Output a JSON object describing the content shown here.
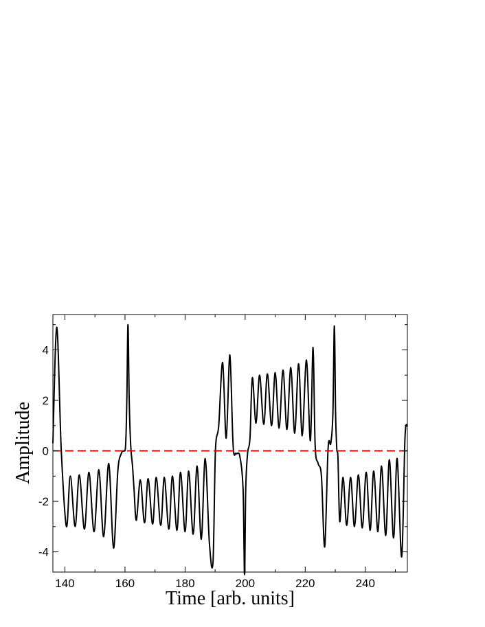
{
  "chart_data": {
    "type": "line",
    "title": "",
    "xlabel": "Time [arb. units]",
    "ylabel": "Amplitude",
    "xlim": [
      136,
      254
    ],
    "ylim": [
      -4.8,
      5.4
    ],
    "grid": false,
    "legend": "none",
    "x_ticks": [
      140,
      160,
      180,
      200,
      220,
      240
    ],
    "x_tick_labels": [
      "140",
      "160",
      "180",
      "200",
      "220",
      "240"
    ],
    "x_minor_ticks": [
      150,
      170,
      190,
      210,
      230,
      250
    ],
    "y_ticks": [
      -4,
      -2,
      0,
      2,
      4
    ],
    "y_tick_labels": [
      "-4",
      "-2",
      "0",
      "2",
      "4"
    ],
    "y_minor_ticks": [
      -3,
      -1,
      1,
      3,
      5
    ],
    "series": [
      {
        "color": "#000000",
        "style": "solid",
        "x": [
          136,
          137.3,
          138.8,
          140.5,
          141.8,
          143.4,
          144.8,
          146.5,
          148,
          149.7,
          151.3,
          152.9,
          154.6,
          156.2,
          157.6,
          158.8,
          159.6,
          160.2,
          160.6,
          161,
          161.4,
          161.9,
          162.5,
          163,
          163.8,
          165.1,
          166.5,
          167.7,
          169.2,
          170.4,
          171.9,
          173.1,
          174.6,
          175.8,
          177.3,
          178.5,
          180,
          181.2,
          182.7,
          184,
          185.4,
          186.7,
          188.1,
          189.3,
          190.1,
          191.2,
          192.5,
          193.7,
          194.9,
          196,
          197,
          198.2,
          199.3,
          199.8,
          200.2,
          200.8,
          201.6,
          202.4,
          203.6,
          204.8,
          206.2,
          207.4,
          208.8,
          210,
          211.3,
          212.6,
          213.9,
          215.2,
          216.5,
          217.8,
          219,
          220.4,
          221.7,
          222.6,
          223.3,
          224.3,
          225.4,
          226.5,
          227.6,
          228.5,
          229.2,
          229.7,
          230.1,
          230.5,
          230.9,
          231.5,
          232.6,
          233.8,
          235.1,
          236.4,
          237.7,
          239,
          240.3,
          241.6,
          242.8,
          244.2,
          245.4,
          246.8,
          248,
          249.4,
          250.6,
          252.1,
          253.2,
          254
        ],
        "y": [
          0.3,
          4.9,
          0,
          -3,
          -1,
          -3,
          -0.95,
          -3.1,
          -0.85,
          -3.2,
          -0.75,
          -3.4,
          -0.5,
          -3.85,
          -0.8,
          -0.1,
          0,
          0.2,
          2,
          5,
          2,
          0.2,
          -0.6,
          -1.5,
          -2.75,
          -1.15,
          -2.85,
          -1.1,
          -2.9,
          -1.05,
          -2.95,
          -1.05,
          -3.1,
          -1,
          -3.15,
          -0.85,
          -3.2,
          -0.8,
          -3.3,
          -0.6,
          -3.5,
          -0.3,
          -3.65,
          -4.4,
          0,
          1,
          3.5,
          0.5,
          3.8,
          0.2,
          -0.1,
          -0.2,
          -1.5,
          -4.9,
          -1.5,
          -0.1,
          0.5,
          2.9,
          1.1,
          3,
          1.05,
          3.05,
          1.0,
          3.1,
          0.9,
          3.2,
          0.85,
          3.3,
          0.7,
          3.45,
          0.6,
          3.6,
          0.4,
          4.1,
          0.2,
          -0.5,
          -1,
          -3.8,
          0.1,
          0.3,
          1.5,
          4.95,
          1.5,
          0.1,
          -0.3,
          -2.8,
          -1.05,
          -2.95,
          -1.05,
          -3,
          -0.95,
          -3.05,
          -0.85,
          -3.15,
          -0.8,
          -3.2,
          -0.6,
          -3.35,
          -0.35,
          -3.45,
          -0.3,
          -4.2,
          0.5,
          1.0
        ]
      },
      {
        "color": "#dd0000",
        "style": "dashed",
        "x": [
          136,
          254
        ],
        "y": [
          0,
          0
        ]
      }
    ]
  }
}
